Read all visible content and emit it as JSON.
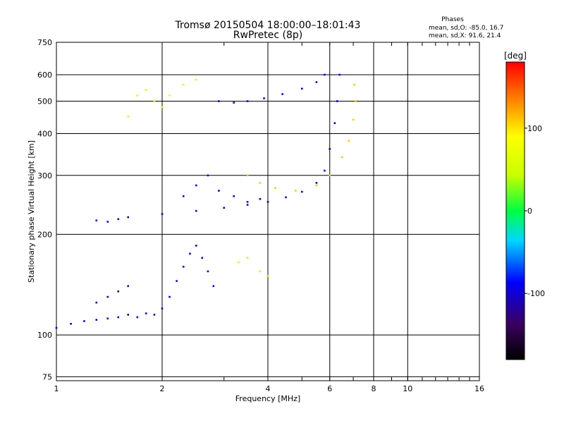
{
  "chart_data": {
    "type": "scatter",
    "title": "Tromsø 20150504 18:00:00–18:01:43",
    "subtitle": "RwPretec (8p)",
    "stats": {
      "heading": "Phases",
      "line1": "mean, sd,O: -85.0, 16.7",
      "line2": "mean, sd,X:  91.6, 21.4"
    },
    "xlabel": "Frequency [MHz]",
    "ylabel": "Stationary phase Virtual Height [km]",
    "x_scale": "log",
    "y_scale": "log",
    "xlim": [
      1,
      16
    ],
    "ylim": [
      73,
      750
    ],
    "x_ticks": [
      1,
      2,
      4,
      6,
      8,
      10,
      16
    ],
    "x_tick_labels": [
      "1",
      "2",
      "4",
      "6",
      "8",
      "10",
      "16"
    ],
    "y_ticks": [
      75,
      100,
      200,
      300,
      400,
      500,
      600,
      750
    ],
    "y_tick_labels": [
      "75",
      "100",
      "200",
      "300",
      "400",
      "500",
      "600",
      "750"
    ],
    "grid": true,
    "colorbar": {
      "label": "[deg]",
      "ticks": [
        100,
        0,
        -100
      ],
      "tick_labels": [
        "100",
        "0",
        "-100"
      ],
      "range": [
        -180,
        180
      ]
    },
    "series": [
      {
        "trace": "O-low",
        "phase": -100,
        "points": [
          [
            1.0,
            105
          ],
          [
            1.1,
            108
          ],
          [
            1.2,
            110
          ],
          [
            1.3,
            111
          ],
          [
            1.4,
            112
          ],
          [
            1.5,
            113
          ],
          [
            1.6,
            115
          ],
          [
            1.7,
            113
          ],
          [
            1.8,
            116
          ]
        ]
      },
      {
        "trace": "O-E-mid",
        "phase": -110,
        "points": [
          [
            1.3,
            125
          ],
          [
            1.4,
            130
          ],
          [
            1.5,
            135
          ],
          [
            1.6,
            140
          ]
        ]
      },
      {
        "trace": "O-E-ramp",
        "phase": -95,
        "points": [
          [
            1.9,
            115
          ],
          [
            2.0,
            120
          ],
          [
            2.1,
            130
          ],
          [
            2.2,
            145
          ],
          [
            2.3,
            160
          ],
          [
            2.4,
            175
          ],
          [
            2.5,
            185
          ],
          [
            2.6,
            170
          ],
          [
            2.7,
            155
          ],
          [
            2.8,
            140
          ]
        ]
      },
      {
        "trace": "O-F1",
        "phase": -105,
        "points": [
          [
            1.3,
            220
          ],
          [
            1.4,
            218
          ],
          [
            1.5,
            222
          ],
          [
            1.6,
            225
          ]
        ]
      },
      {
        "trace": "O-F2",
        "phase": -95,
        "points": [
          [
            2.0,
            230
          ],
          [
            2.5,
            235
          ],
          [
            3.0,
            240
          ],
          [
            3.5,
            245
          ],
          [
            4.0,
            250
          ],
          [
            4.5,
            258
          ],
          [
            5.0,
            268
          ],
          [
            5.5,
            285
          ],
          [
            5.8,
            310
          ],
          [
            6.0,
            360
          ],
          [
            6.2,
            430
          ],
          [
            6.3,
            500
          ],
          [
            6.4,
            600
          ]
        ]
      },
      {
        "trace": "X-F2",
        "phase": 110,
        "points": [
          [
            3.5,
            300
          ],
          [
            3.8,
            285
          ],
          [
            4.2,
            275
          ],
          [
            4.8,
            270
          ],
          [
            5.5,
            280
          ],
          [
            6.0,
            300
          ],
          [
            6.5,
            340
          ],
          [
            6.8,
            380
          ],
          [
            7.0,
            440
          ],
          [
            7.1,
            500
          ],
          [
            7.05,
            560
          ]
        ]
      },
      {
        "trace": "X-E",
        "phase": 100,
        "points": [
          [
            3.3,
            165
          ],
          [
            3.5,
            170
          ],
          [
            3.8,
            155
          ],
          [
            4.0,
            150
          ]
        ]
      },
      {
        "trace": "F-echo-blue",
        "phase": -95,
        "points": [
          [
            2.9,
            500
          ],
          [
            3.2,
            495
          ],
          [
            3.5,
            500
          ],
          [
            3.9,
            510
          ],
          [
            4.4,
            525
          ],
          [
            5.0,
            545
          ],
          [
            5.5,
            570
          ],
          [
            5.8,
            600
          ]
        ]
      },
      {
        "trace": "F-echo-mix",
        "phase": 60,
        "points": [
          [
            1.6,
            450
          ],
          [
            1.7,
            520
          ],
          [
            1.8,
            540
          ],
          [
            1.9,
            500
          ],
          [
            2.0,
            480
          ],
          [
            2.1,
            520
          ],
          [
            2.3,
            560
          ],
          [
            2.5,
            580
          ]
        ]
      },
      {
        "trace": "scattered-blue",
        "phase": -95,
        "points": [
          [
            2.3,
            260
          ],
          [
            2.5,
            280
          ],
          [
            2.7,
            300
          ],
          [
            2.9,
            270
          ],
          [
            3.2,
            260
          ],
          [
            3.5,
            250
          ],
          [
            3.8,
            255
          ]
        ]
      }
    ]
  }
}
